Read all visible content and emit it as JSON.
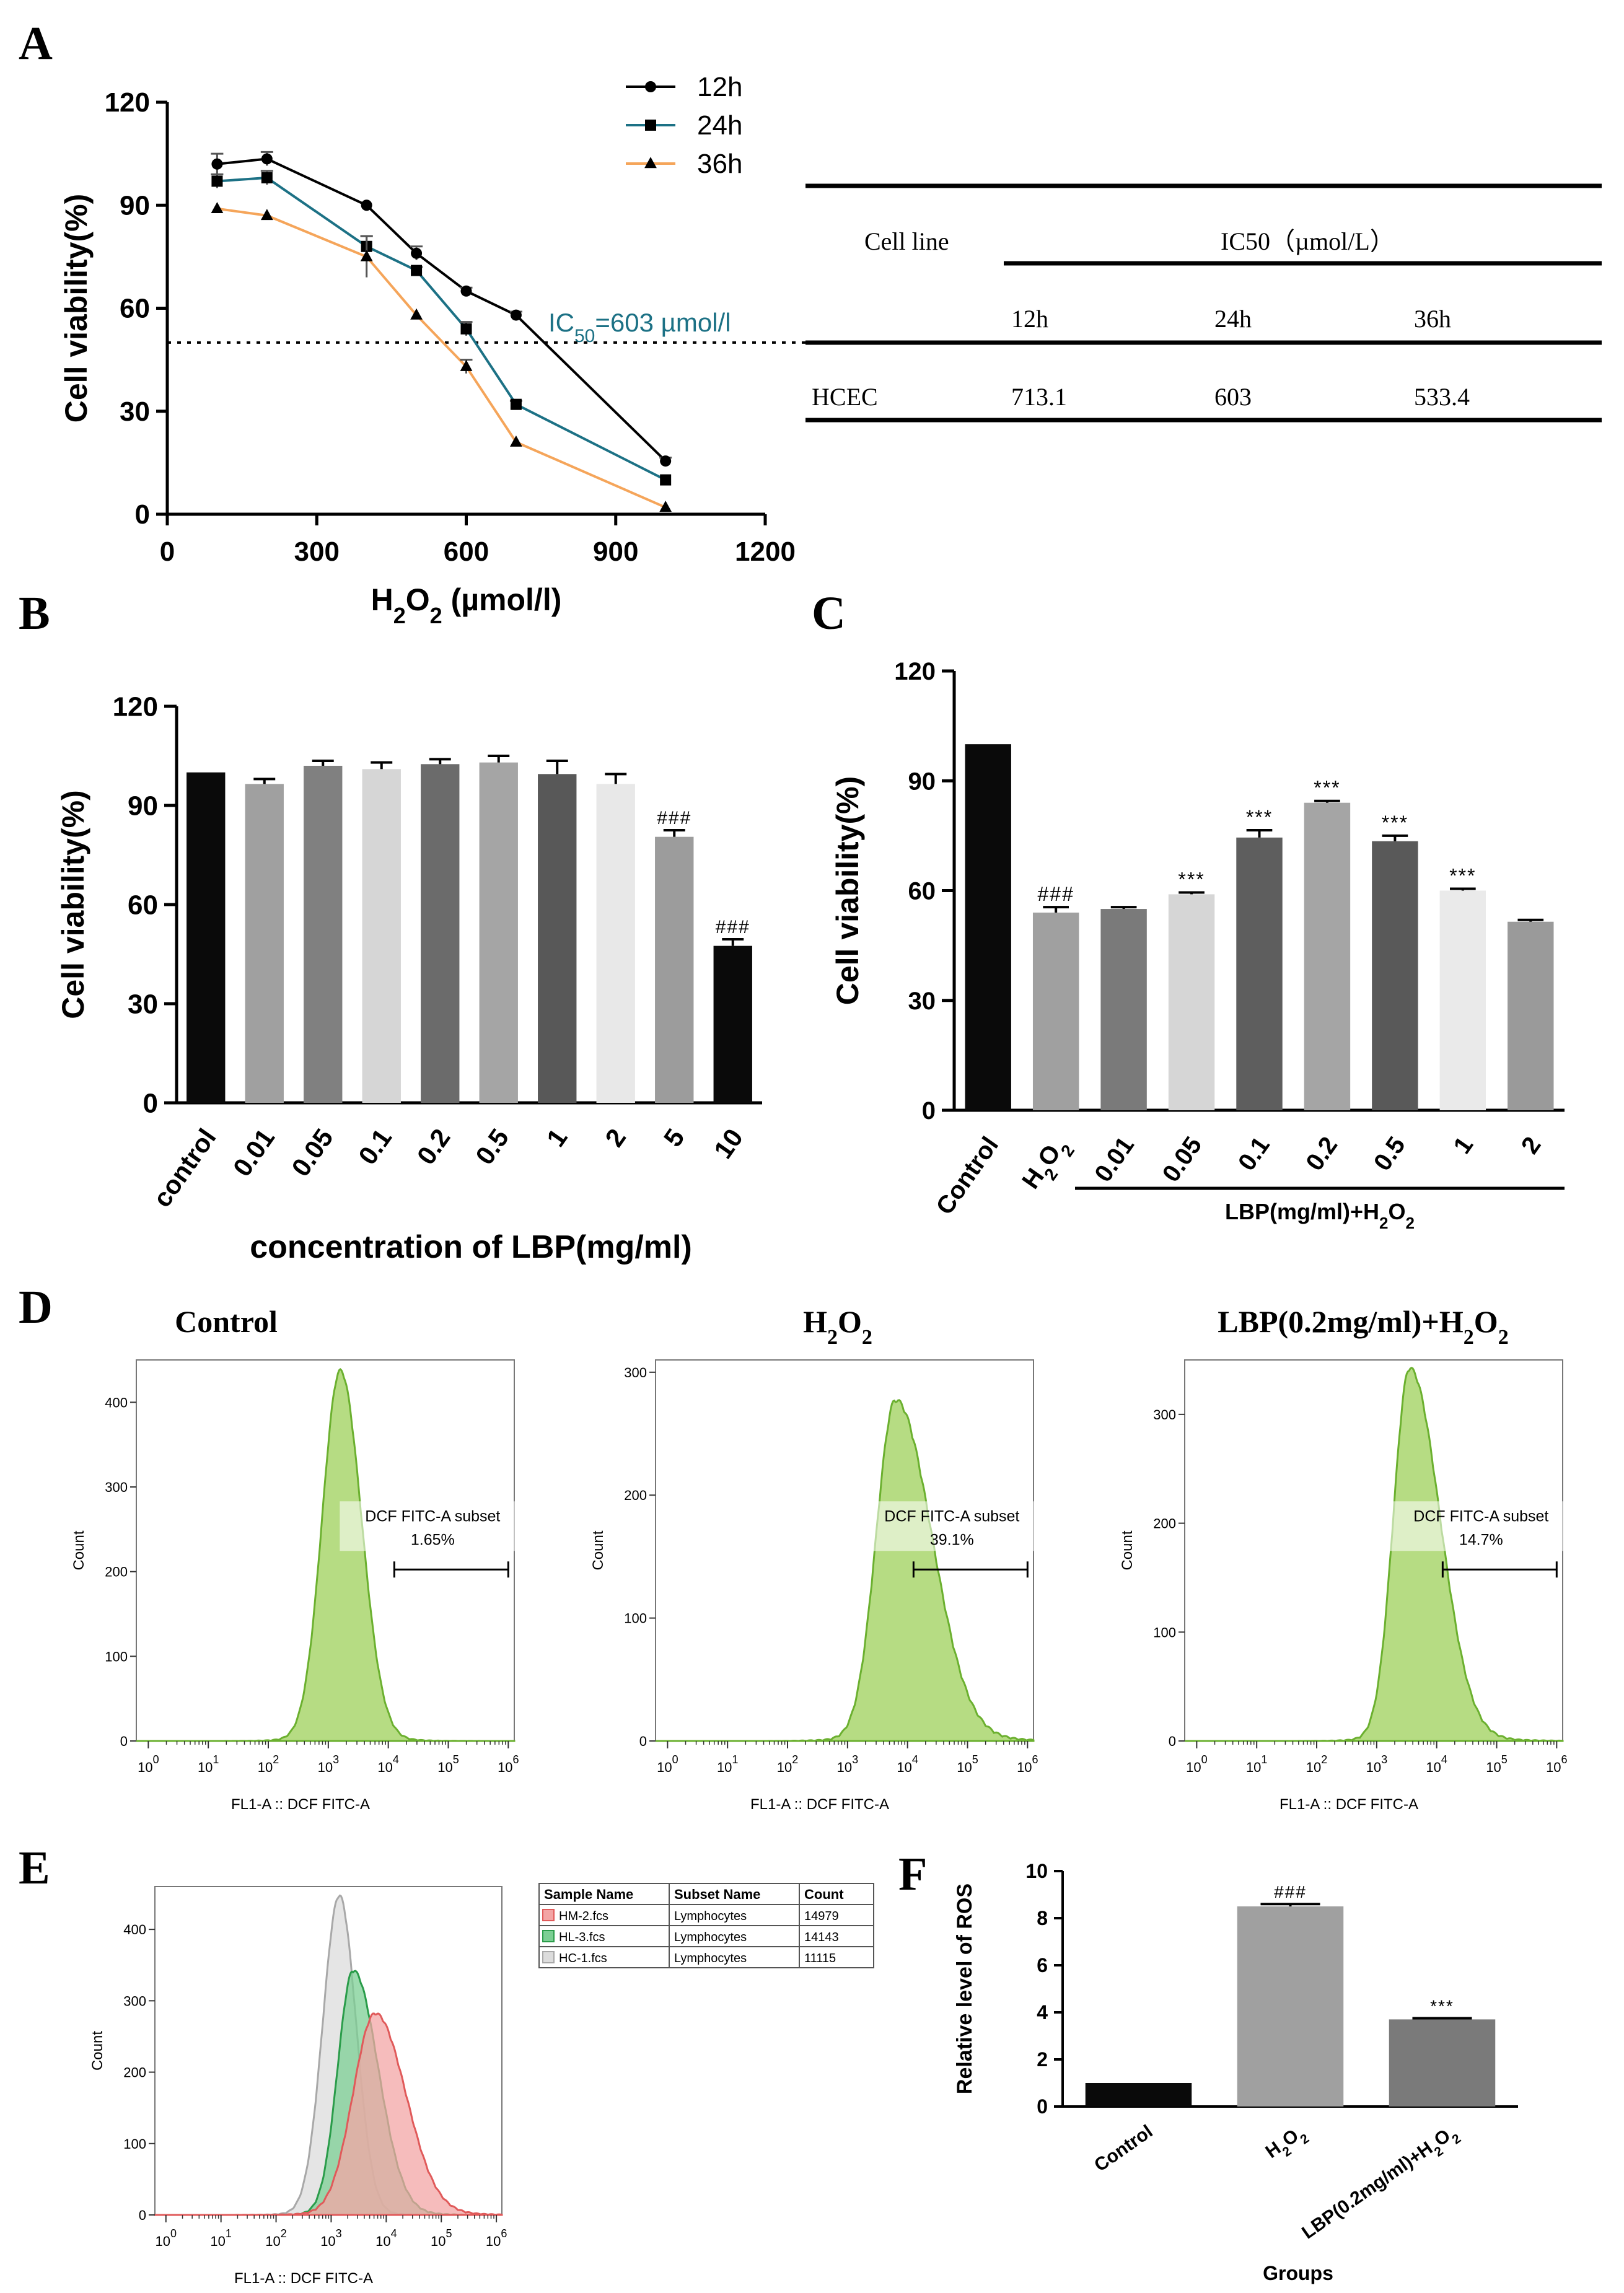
{
  "panels": {
    "A": {
      "letter": "A"
    },
    "B": {
      "letter": "B"
    },
    "C": {
      "letter": "C"
    },
    "D": {
      "letter": "D"
    },
    "E": {
      "letter": "E"
    },
    "F": {
      "letter": "F"
    }
  },
  "chart_data": [
    {
      "id": "A",
      "type": "line",
      "ylabel": "Cell viability(%)",
      "xlabel": "H2O2 (µmol/l)",
      "xlim": [
        0,
        1200
      ],
      "ylim": [
        0,
        120
      ],
      "xticks": [
        "0",
        "300",
        "600",
        "900",
        "1200"
      ],
      "yticks": [
        "0",
        "30",
        "60",
        "90",
        "120"
      ],
      "x": [
        100,
        200,
        400,
        500,
        600,
        700,
        1000
      ],
      "series": [
        {
          "name": "12h",
          "marker": "circle",
          "color": "#000000",
          "values": [
            102,
            103.5,
            90,
            76,
            65,
            58,
            15.5
          ],
          "err": [
            3,
            2,
            0,
            2,
            1,
            1,
            1
          ]
        },
        {
          "name": "24h",
          "marker": "square",
          "color": "#1c7185",
          "values": [
            97,
            98,
            78,
            71,
            54,
            32,
            10
          ],
          "err": [
            2,
            2,
            3,
            1,
            2,
            1,
            0
          ]
        },
        {
          "name": "36h",
          "marker": "triangle",
          "color": "#f5a55a",
          "values": [
            89,
            87,
            75,
            58,
            43,
            21,
            2
          ],
          "err": [
            0,
            0,
            6,
            0,
            2,
            0,
            0
          ]
        }
      ],
      "annotations": {
        "ic50_line_y": 50,
        "ic50_label_prefix": "IC",
        "ic50_label_sub": "50",
        "ic50_label_value": "=603 µmol/l"
      }
    },
    {
      "id": "A-table",
      "type": "table",
      "header_row1": [
        "Cell line",
        "IC50（µmol/L）"
      ],
      "header_row2": [
        "12h",
        "24h",
        "36h"
      ],
      "rows": [
        [
          "HCEC",
          "713.1",
          "603",
          "533.4"
        ]
      ]
    },
    {
      "id": "B",
      "type": "bar",
      "ylabel": "Cell viability(%)",
      "xlabel": "concentration of LBP(mg/ml)",
      "ylim": [
        0,
        120
      ],
      "yticks": [
        "0",
        "30",
        "60",
        "90",
        "120"
      ],
      "categories": [
        "control",
        "0.01",
        "0.05",
        "0.1",
        "0.2",
        "0.5",
        "1",
        "2",
        "5",
        "10"
      ],
      "values": [
        100,
        96.5,
        102,
        101,
        102.5,
        103,
        99.5,
        96.5,
        80.5,
        47.5
      ],
      "err": [
        0,
        1.5,
        1.5,
        2,
        1.5,
        2,
        4,
        3,
        2,
        2
      ],
      "colors": [
        "#0a0a0a",
        "#a0a0a0",
        "#808080",
        "#d6d6d6",
        "#6b6b6b",
        "#a5a5a5",
        "#585858",
        "#e8e8e8",
        "#9c9c9c",
        "#0a0a0a"
      ],
      "labels": [
        "",
        "",
        "",
        "",
        "",
        "",
        "",
        "",
        "###",
        "###"
      ]
    },
    {
      "id": "C",
      "type": "bar",
      "ylabel": "Cell viability(%)",
      "xlabel_group": "LBP(mg/ml)+H2O2",
      "ylim": [
        0,
        120
      ],
      "yticks": [
        "0",
        "30",
        "60",
        "90",
        "120"
      ],
      "categories": [
        "Control",
        "H2O2",
        "0.01",
        "0.05",
        "0.1",
        "0.2",
        "0.5",
        "1",
        "2"
      ],
      "values": [
        100,
        54,
        55,
        59,
        74.5,
        84,
        73.5,
        60,
        51.5
      ],
      "err": [
        0,
        1.5,
        0.5,
        0.5,
        2,
        0.5,
        1.5,
        0.5,
        0.5
      ],
      "colors": [
        "#0a0a0a",
        "#a0a0a0",
        "#7a7a7a",
        "#d6d6d6",
        "#5e5e5e",
        "#a5a5a5",
        "#595959",
        "#eaeaea",
        "#9a9a9a"
      ],
      "labels": [
        "",
        "###",
        "",
        "***",
        "***",
        "***",
        "***",
        "***",
        ""
      ]
    },
    {
      "id": "D1",
      "type": "area",
      "title": "Control",
      "ylabel": "Count",
      "xlabel": "FL1-A :: DCF FITC-A",
      "ylim": [
        0,
        450
      ],
      "yticks": [
        "0",
        "100",
        "200",
        "300",
        "400"
      ],
      "xticks_base": "10",
      "xticks_exp": [
        "0",
        "1",
        "2",
        "3",
        "4",
        "5",
        "6"
      ],
      "gate": {
        "name": "DCF FITC-A subset",
        "percent": "1.65%",
        "from_log": 4.1,
        "to_log": 6.0
      },
      "peak_log": 3.2,
      "peak_count": 435,
      "width_left": 0.3,
      "width_right": 0.35
    },
    {
      "id": "D2",
      "type": "area",
      "title": "H2O2",
      "ylabel": "Count",
      "xlabel": "FL1-A :: DCF FITC-A",
      "ylim": [
        0,
        310
      ],
      "yticks": [
        "0",
        "100",
        "200",
        "300"
      ],
      "xticks_base": "10",
      "xticks_exp": [
        "0",
        "1",
        "2",
        "3",
        "4",
        "5",
        "6"
      ],
      "gate": {
        "name": "DCF FITC-A subset",
        "percent": "39.1%",
        "from_log": 4.1,
        "to_log": 6.0
      },
      "peak_log": 3.8,
      "peak_count": 275,
      "width_left": 0.32,
      "width_right": 0.6
    },
    {
      "id": "D3",
      "type": "area",
      "title": "LBP(0.2mg/ml)+H2O2",
      "ylabel": "Count",
      "xlabel": "FL1-A :: DCF FITC-A",
      "ylim": [
        0,
        350
      ],
      "yticks": [
        "0",
        "100",
        "200",
        "300"
      ],
      "xticks_base": "10",
      "xticks_exp": [
        "0",
        "1",
        "2",
        "3",
        "4",
        "5",
        "6"
      ],
      "gate": {
        "name": "DCF FITC-A subset",
        "percent": "14.7%",
        "from_log": 4.1,
        "to_log": 6.0
      },
      "peak_log": 3.55,
      "peak_count": 340,
      "width_left": 0.27,
      "width_right": 0.5
    },
    {
      "id": "E",
      "type": "area",
      "ylabel": "Count",
      "xlabel": "FL1-A :: DCF FITC-A",
      "ylim": [
        0,
        460
      ],
      "yticks": [
        "0",
        "100",
        "200",
        "300",
        "400"
      ],
      "xticks_base": "10",
      "xticks_exp": [
        "0",
        "1",
        "2",
        "3",
        "4",
        "5",
        "6"
      ],
      "legend_headers": [
        "Sample Name",
        "Subset Name",
        "Count"
      ],
      "series": [
        {
          "name": "HM-2.fcs",
          "subset": "Lymphocytes",
          "count": "14979",
          "color": "#f3a5a5",
          "stroke": "#e05a5a",
          "peak_log": 3.8,
          "peak_count": 280,
          "width_left": 0.4,
          "width_right": 0.55
        },
        {
          "name": "HL-3.fcs",
          "subset": "Lymphocytes",
          "count": "14143",
          "color": "#7ccf94",
          "stroke": "#2a9c4a",
          "peak_log": 3.4,
          "peak_count": 340,
          "width_left": 0.28,
          "width_right": 0.45
        },
        {
          "name": "HC-1.fcs",
          "subset": "Lymphocytes",
          "count": "11115",
          "color": "#dcdcdc",
          "stroke": "#a8a8a8",
          "peak_log": 3.15,
          "peak_count": 445,
          "width_left": 0.3,
          "width_right": 0.3
        }
      ]
    },
    {
      "id": "F",
      "type": "bar",
      "ylabel": "Relative level of ROS",
      "xlabel": "Groups",
      "ylim": [
        0,
        10
      ],
      "yticks": [
        "0",
        "2",
        "4",
        "6",
        "8",
        "10"
      ],
      "categories": [
        "Control",
        "H2O2",
        "LBP(0.2mg/ml)+H2O2"
      ],
      "values": [
        1,
        8.5,
        3.7
      ],
      "err": [
        0,
        0.1,
        0.05
      ],
      "colors": [
        "#0a0a0a",
        "#a0a0a0",
        "#7a7a7a"
      ],
      "labels": [
        "",
        "###",
        "***"
      ]
    }
  ]
}
